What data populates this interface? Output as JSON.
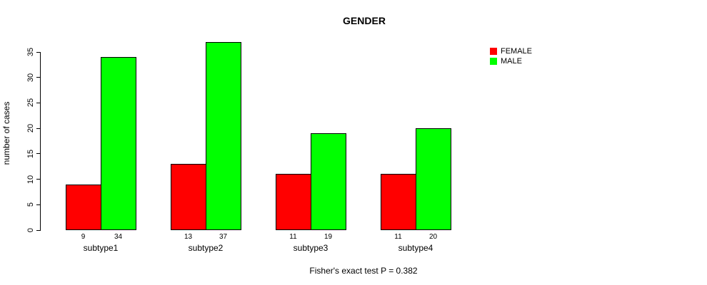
{
  "title": "GENDER",
  "footnote": "Fisher's exact test P = 0.382",
  "legend": {
    "items": [
      {
        "label": "FEMALE",
        "color": "#ff0000"
      },
      {
        "label": "MALE",
        "color": "#00ff00"
      }
    ]
  },
  "chart_data": {
    "type": "bar",
    "title": "GENDER",
    "categories": [
      "subtype1",
      "subtype2",
      "subtype3",
      "subtype4"
    ],
    "series": [
      {
        "name": "FEMALE",
        "color": "#ff0000",
        "values": [
          9,
          13,
          11,
          11
        ]
      },
      {
        "name": "MALE",
        "color": "#00ff00",
        "values": [
          34,
          37,
          19,
          20
        ]
      }
    ],
    "xlabel": "",
    "ylabel": "number of cases",
    "ylim": [
      0,
      35
    ],
    "yticks": [
      0,
      5,
      10,
      15,
      20,
      25,
      30,
      35
    ],
    "bar_value_labels": true,
    "bar_border_color": "#000000",
    "legend_position": "top-right",
    "grid": false,
    "annotation": "Fisher's exact test P = 0.382"
  }
}
